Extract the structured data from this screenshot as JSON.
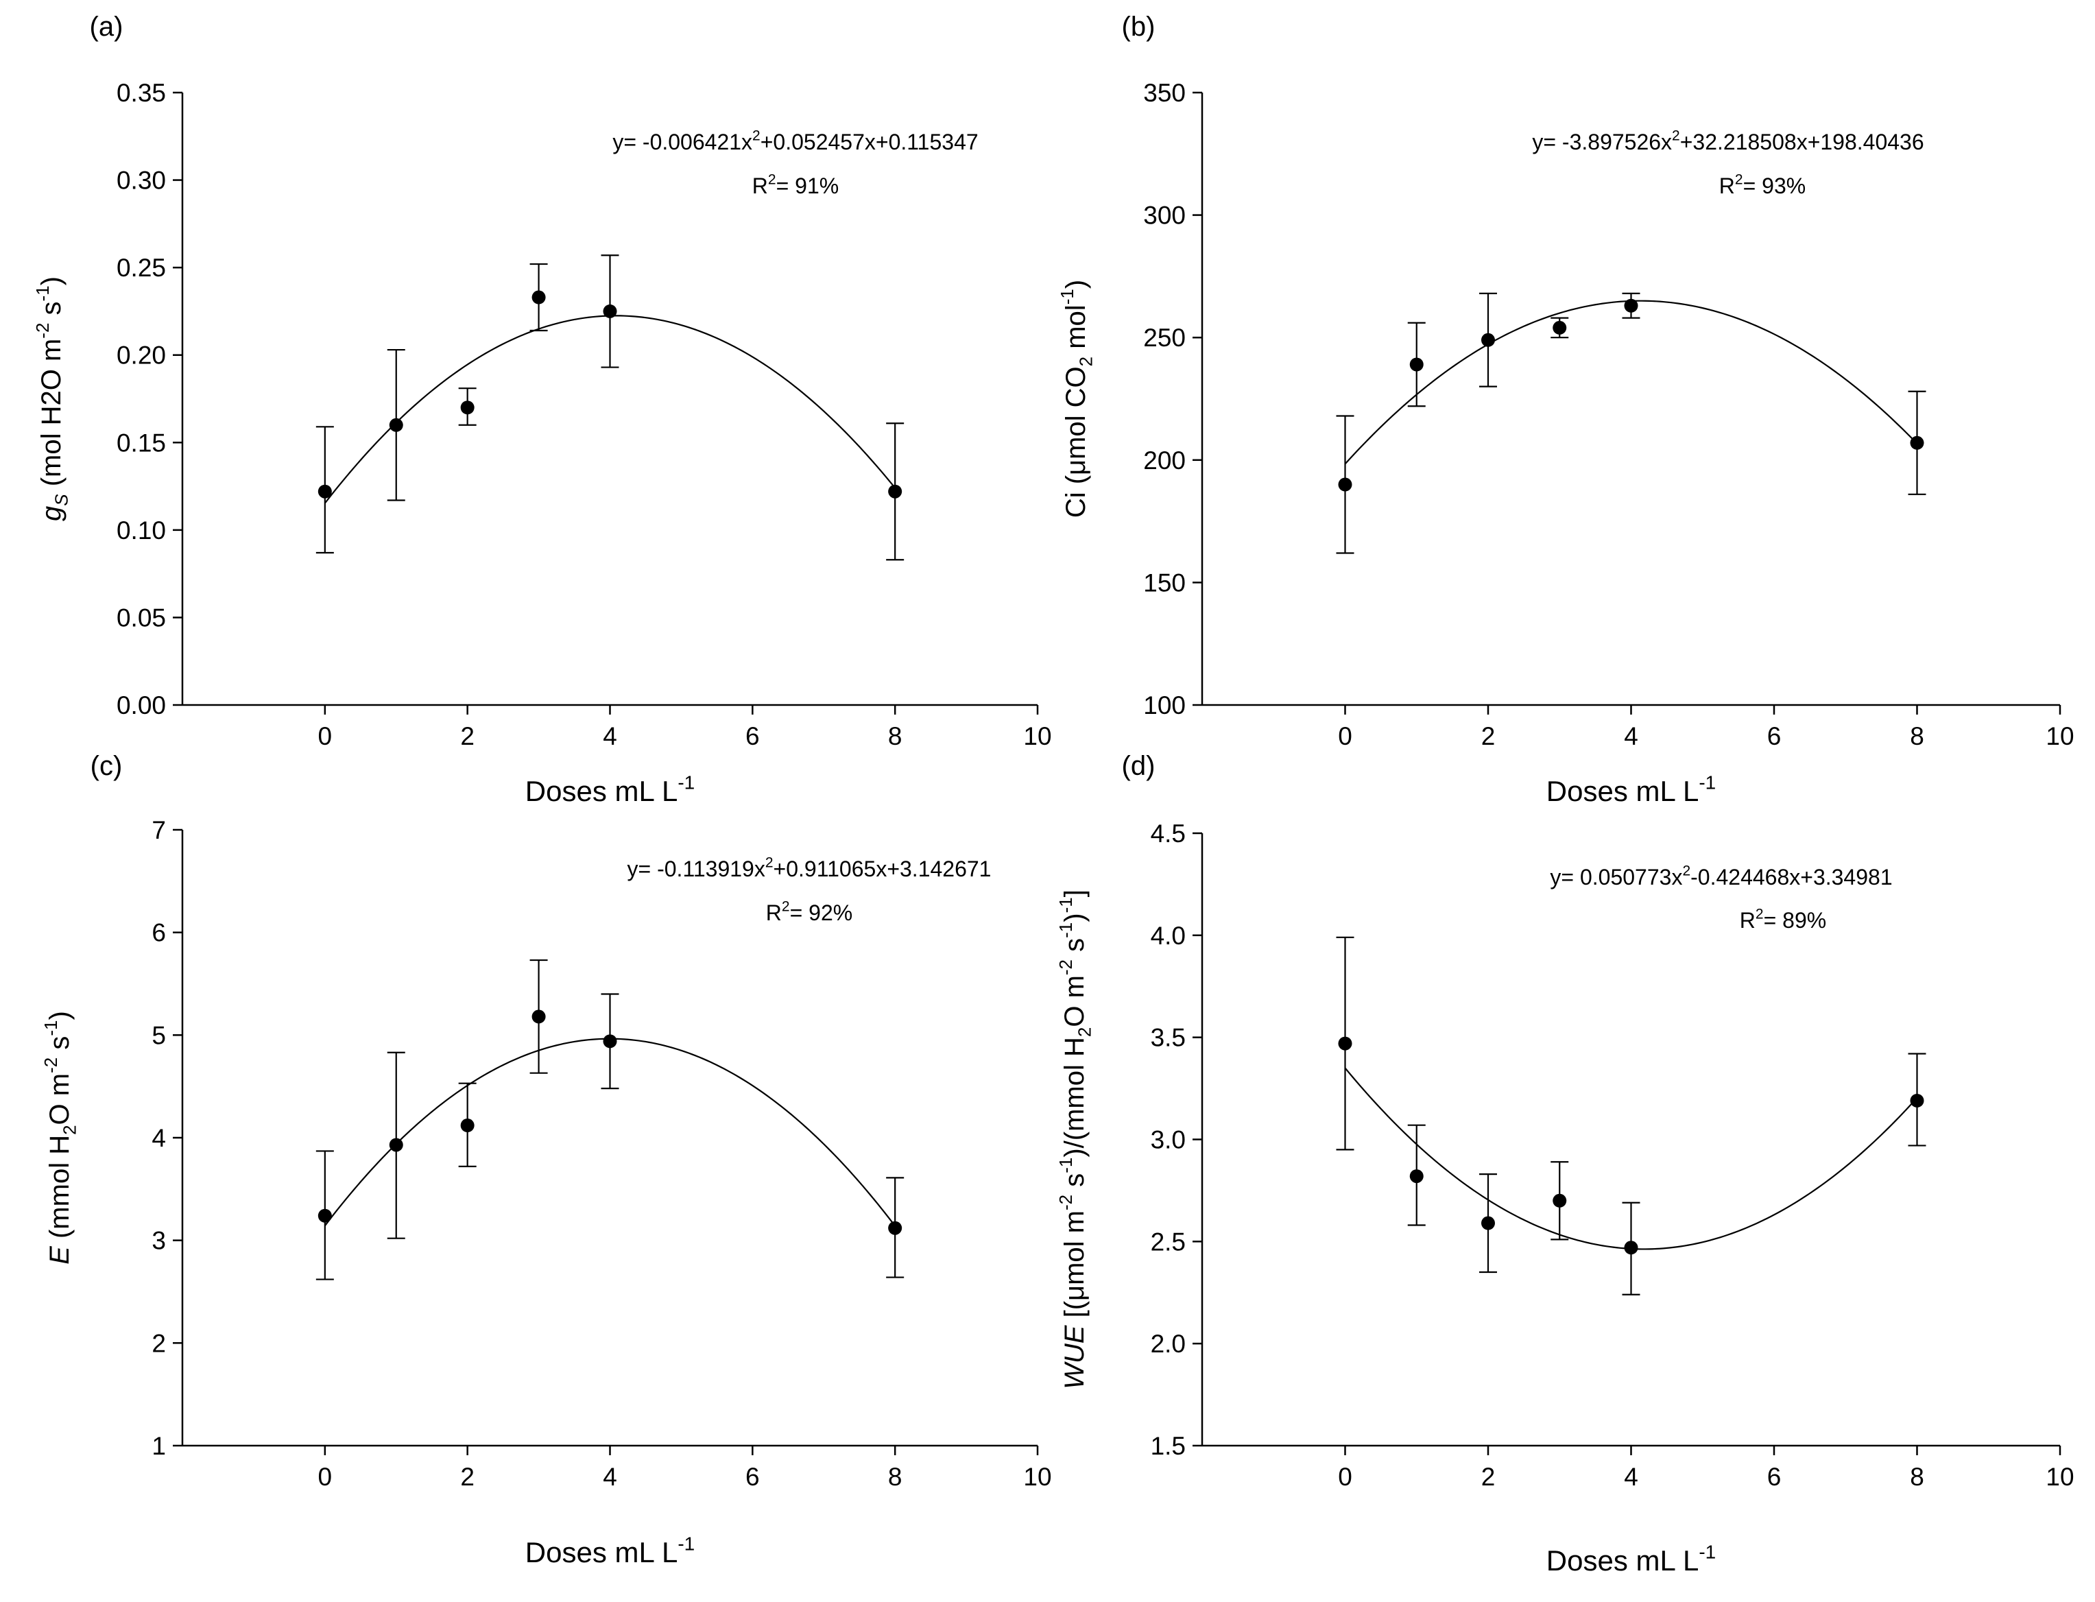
{
  "chart_data": [
    {
      "type": "scatter",
      "panel": "(a)",
      "xlabel": "Doses mL L",
      "xlabel_sup": "-1",
      "ylabel_parts": [
        {
          "t": "g",
          "italic": true
        },
        {
          "t": "S",
          "sub": true,
          "italic": true
        },
        {
          "t": " (mol H2O m"
        },
        {
          "t": "-2",
          "sup": true
        },
        {
          "t": " s"
        },
        {
          "t": "-1",
          "sup": true
        },
        {
          "t": ")"
        }
      ],
      "xlim": [
        -2,
        10
      ],
      "ylim": [
        0,
        0.35
      ],
      "xticks": [
        0,
        2,
        4,
        6,
        8,
        10
      ],
      "yticks": [
        "0.00",
        "0.05",
        "0.10",
        "0.15",
        "0.20",
        "0.25",
        "0.30",
        "0.35"
      ],
      "x": [
        0,
        1,
        2,
        3,
        4,
        8
      ],
      "y": [
        0.122,
        0.16,
        0.17,
        0.233,
        0.225,
        0.122
      ],
      "err_low": [
        0.087,
        0.117,
        0.16,
        0.214,
        0.193,
        0.083
      ],
      "err_high": [
        0.159,
        0.203,
        0.181,
        0.252,
        0.257,
        0.161
      ],
      "fit": {
        "a": -0.006421,
        "b": 0.052457,
        "c": 0.115347,
        "x_range": [
          0,
          8
        ]
      },
      "equation": {
        "prefix": "y= -0.006421x",
        "sup": "2",
        "suffix": "+0.052457x+0.115347"
      },
      "r2": {
        "prefix": "R",
        "sup": "2",
        "suffix": "= 91%"
      }
    },
    {
      "type": "scatter",
      "panel": "(b)",
      "xlabel": "Doses mL L",
      "xlabel_sup": "-1",
      "ylabel_parts": [
        {
          "t": "Ci (μmol CO"
        },
        {
          "t": "2",
          "sub": true
        },
        {
          "t": " mol"
        },
        {
          "t": "-1",
          "sup": true
        },
        {
          "t": ")"
        }
      ],
      "xlim": [
        -2,
        10
      ],
      "ylim": [
        100,
        350
      ],
      "xticks": [
        0,
        2,
        4,
        6,
        8,
        10
      ],
      "yticks": [
        "100",
        "150",
        "200",
        "250",
        "300",
        "350"
      ],
      "x": [
        0,
        1,
        2,
        3,
        4,
        8
      ],
      "y": [
        190,
        239,
        249,
        254,
        263,
        207
      ],
      "err_low": [
        162,
        222,
        230,
        250,
        258,
        186
      ],
      "err_high": [
        218,
        256,
        268,
        258,
        268,
        228
      ],
      "fit": {
        "a": -3.897526,
        "b": 32.218508,
        "c": 198.40436,
        "x_range": [
          0,
          8
        ]
      },
      "equation": {
        "prefix": "y= -3.897526x",
        "sup": "2",
        "suffix": "+32.218508x+198.40436"
      },
      "r2": {
        "prefix": "R",
        "sup": "2",
        "suffix": "= 93%"
      }
    },
    {
      "type": "scatter",
      "panel": "(c)",
      "xlabel": "Doses mL L",
      "xlabel_sup": "-1",
      "ylabel_parts": [
        {
          "t": "E",
          "italic": true
        },
        {
          "t": " (mmol H"
        },
        {
          "t": "2",
          "sub": true
        },
        {
          "t": "O m"
        },
        {
          "t": "-2",
          "sup": true
        },
        {
          "t": " s"
        },
        {
          "t": "-1",
          "sup": true
        },
        {
          "t": ")"
        }
      ],
      "xlim": [
        -2,
        10
      ],
      "ylim": [
        1,
        7
      ],
      "xticks": [
        0,
        2,
        4,
        6,
        8,
        10
      ],
      "yticks": [
        "1",
        "2",
        "3",
        "4",
        "5",
        "6",
        "7"
      ],
      "x": [
        0,
        1,
        2,
        3,
        4,
        8
      ],
      "y": [
        3.24,
        3.93,
        4.12,
        5.18,
        4.94,
        3.12
      ],
      "err_low": [
        2.62,
        3.02,
        3.72,
        4.63,
        4.48,
        2.64
      ],
      "err_high": [
        3.87,
        4.83,
        4.53,
        5.73,
        5.4,
        3.61
      ],
      "fit": {
        "a": -0.113919,
        "b": 0.911065,
        "c": 3.142671,
        "x_range": [
          0,
          8
        ]
      },
      "equation": {
        "prefix": "y= -0.113919x",
        "sup": "2",
        "suffix": "+0.911065x+3.142671"
      },
      "r2": {
        "prefix": "R",
        "sup": "2",
        "suffix": "= 92%"
      }
    },
    {
      "type": "scatter",
      "panel": "(d)",
      "xlabel": "Doses mL L",
      "xlabel_sup": "-1",
      "ylabel_parts": [
        {
          "t": "WUE",
          "italic": true
        },
        {
          "t": " [(μmol m"
        },
        {
          "t": "-2",
          "sup": true
        },
        {
          "t": " s"
        },
        {
          "t": "-1",
          "sup": true
        },
        {
          "t": ")/(mmol H"
        },
        {
          "t": "2",
          "sub": true
        },
        {
          "t": "O m"
        },
        {
          "t": "-2",
          "sup": true
        },
        {
          "t": " s"
        },
        {
          "t": "-1",
          "sup": true
        },
        {
          "t": ")"
        },
        {
          "t": "-1",
          "sup": true
        },
        {
          "t": "]"
        }
      ],
      "xlim": [
        -2,
        10
      ],
      "ylim": [
        1.5,
        4.5
      ],
      "xticks": [
        0,
        2,
        4,
        6,
        8,
        10
      ],
      "yticks": [
        "1.5",
        "2.0",
        "2.5",
        "3.0",
        "3.5",
        "4.0",
        "4.5"
      ],
      "x": [
        0,
        1,
        2,
        3,
        4,
        8
      ],
      "y": [
        3.47,
        2.82,
        2.59,
        2.7,
        2.47,
        3.19
      ],
      "err_low": [
        2.95,
        2.58,
        2.35,
        2.51,
        2.24,
        2.97
      ],
      "err_high": [
        3.99,
        3.07,
        2.83,
        2.89,
        2.69,
        3.42
      ],
      "fit": {
        "a": 0.050773,
        "b": -0.424468,
        "c": 3.34981,
        "x_range": [
          0,
          8
        ]
      },
      "equation": {
        "prefix": "y= 0.050773x",
        "sup": "2",
        "suffix": "-0.424468x+3.34981"
      },
      "r2": {
        "prefix": "R",
        "sup": "2",
        "suffix": "= 89%"
      }
    }
  ]
}
